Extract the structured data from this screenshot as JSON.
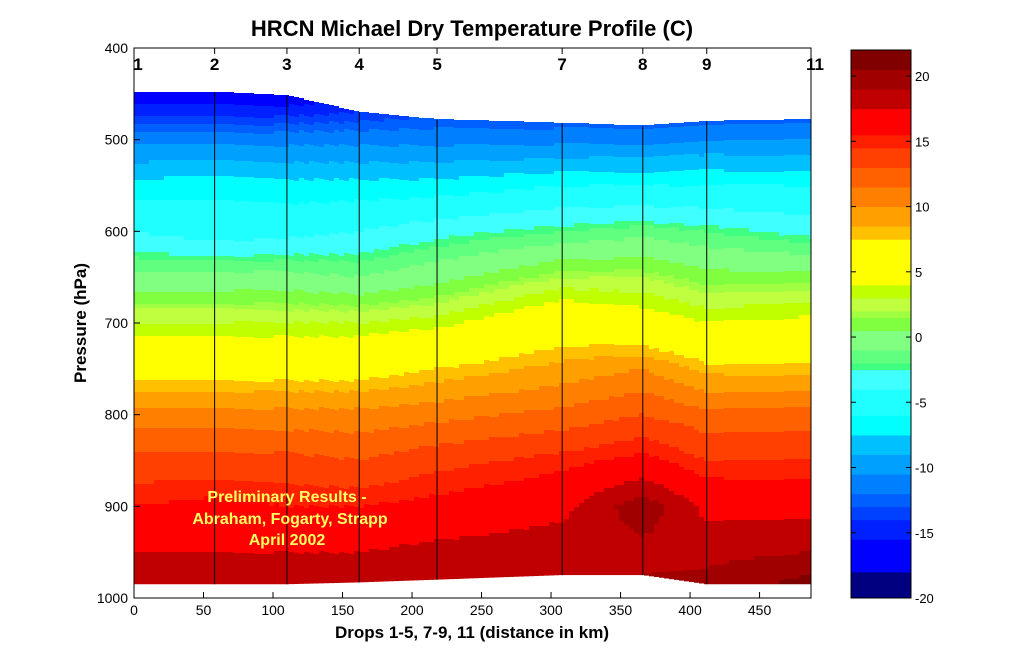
{
  "chart_data": {
    "type": "heatmap",
    "title": "HRCN Michael Dry Temperature Profile (C)",
    "xlabel": "Drops 1-5, 7-9, 11 (distance in km)",
    "ylabel": "Pressure (hPa)",
    "xlim": [
      0,
      487
    ],
    "ylim": [
      1000,
      400
    ],
    "xticks": [
      0,
      50,
      100,
      150,
      200,
      250,
      300,
      350,
      400,
      450
    ],
    "yticks": [
      400,
      500,
      600,
      700,
      800,
      900,
      1000
    ],
    "annotation": [
      "Preliminary Results -",
      "Abraham, Fogarty, Strapp",
      "April 2002"
    ],
    "pressure_levels": [
      450,
      500,
      550,
      600,
      650,
      700,
      750,
      800,
      850,
      900,
      950,
      1000
    ],
    "drops": [
      {
        "label": "1",
        "x": 0,
        "top": 448,
        "bottom": 985,
        "temps": [
          -17,
          -11,
          -7,
          -4,
          -0.5,
          3,
          6.5,
          10.5,
          13.5,
          15.5,
          17.5,
          19
        ]
      },
      {
        "label": "2",
        "x": 58,
        "top": 448,
        "bottom": 985,
        "temps": [
          -17,
          -11,
          -6.5,
          -5,
          -0.5,
          3,
          6.5,
          10.5,
          13.5,
          16,
          17.5,
          19
        ]
      },
      {
        "label": "3",
        "x": 110,
        "top": 452,
        "bottom": 985,
        "temps": [
          -17,
          -11,
          -7,
          -4.5,
          -0.5,
          3,
          6.5,
          10.5,
          13.5,
          15.5,
          17.5,
          19
        ]
      },
      {
        "label": "4",
        "x": 162,
        "top": 470,
        "bottom": 983,
        "temps": [
          -16,
          -11,
          -7,
          -4,
          -1,
          3,
          6.5,
          10.5,
          13,
          15.5,
          17.5,
          19
        ]
      },
      {
        "label": "5",
        "x": 218,
        "top": 478,
        "bottom": 980,
        "temps": [
          -15,
          -11,
          -7,
          -3,
          0,
          3.5,
          7.5,
          11,
          14,
          16,
          18,
          19
        ]
      },
      {
        "label": "7",
        "x": 308,
        "top": 482,
        "bottom": 975,
        "temps": [
          -15,
          -11,
          -6,
          -2,
          2,
          6,
          9,
          12,
          15,
          17,
          18.5,
          19
        ]
      },
      {
        "label": "8",
        "x": 366,
        "top": 485,
        "bottom": 975,
        "temps": [
          -15,
          -11,
          -6,
          -1.5,
          2,
          5,
          10,
          13,
          16,
          20,
          18.5,
          19.5
        ]
      },
      {
        "label": "9",
        "x": 412,
        "top": 480,
        "bottom": 985,
        "temps": [
          -15,
          -10.5,
          -6,
          -2,
          1,
          4,
          8,
          12,
          14.5,
          17,
          18.5,
          20
        ]
      },
      {
        "label": "11",
        "x": 487,
        "top": 478,
        "bottom": 985,
        "temps": [
          -15,
          -10.5,
          -6,
          -3,
          1,
          4.5,
          8,
          12,
          14.5,
          17,
          19,
          22
        ]
      }
    ],
    "colorbar": {
      "range": [
        -20,
        22
      ],
      "ticks": [
        -20,
        -15,
        -10,
        -5,
        0,
        5,
        10,
        15,
        20
      ],
      "edges": [
        -20,
        -18,
        -15.5,
        -14,
        -13,
        -12,
        -10.5,
        -9,
        -7.5,
        -6,
        -4,
        -2.5,
        -2,
        -1,
        0.5,
        1.5,
        2,
        3,
        4,
        4.5,
        5,
        7.5,
        8.5,
        10,
        11.5,
        13,
        14.5,
        15.5,
        17.5,
        19,
        20.5,
        22
      ],
      "colors": [
        "#000080",
        "#0000ff",
        "#0020ff",
        "#0040ff",
        "#0060ff",
        "#0080ff",
        "#00a0ff",
        "#00c0ff",
        "#00ffff",
        "#20ffff",
        "#40ffff",
        "#40ff80",
        "#60ff80",
        "#80ff80",
        "#80ff40",
        "#a0ff40",
        "#c0ff40",
        "#c0ff00",
        "#ffff00",
        "#ffff00",
        "#ffff00",
        "#ffc000",
        "#ffa000",
        "#ff8000",
        "#ff6000",
        "#ff4000",
        "#ff2000",
        "#ff0000",
        "#c00000",
        "#a00000",
        "#800000"
      ]
    },
    "annotation_color": "#ffff60"
  }
}
